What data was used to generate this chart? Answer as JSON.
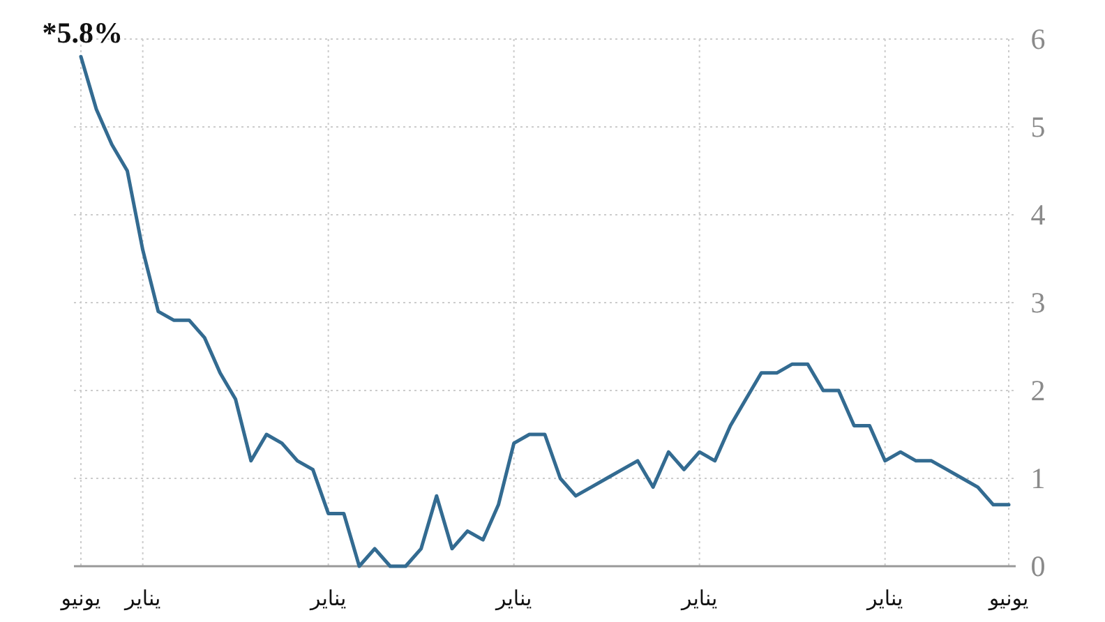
{
  "chart_data": {
    "type": "line",
    "categories": [
      "يونيو",
      null,
      null,
      null,
      "يناير",
      null,
      null,
      null,
      null,
      null,
      null,
      null,
      null,
      null,
      null,
      null,
      "يناير",
      null,
      null,
      null,
      null,
      null,
      null,
      null,
      null,
      null,
      null,
      null,
      "يناير",
      null,
      null,
      null,
      null,
      null,
      null,
      null,
      null,
      null,
      null,
      null,
      "يناير",
      null,
      null,
      null,
      null,
      null,
      null,
      null,
      null,
      null,
      null,
      null,
      "يناير",
      null,
      null,
      null,
      null,
      null,
      null,
      null,
      "يونيو"
    ],
    "values": [
      5.8,
      5.2,
      4.8,
      4.5,
      3.6,
      2.9,
      2.8,
      2.8,
      2.6,
      2.2,
      1.9,
      1.2,
      1.5,
      1.4,
      1.2,
      1.1,
      0.6,
      0.6,
      0,
      0.2,
      0,
      0,
      0.2,
      0.8,
      0.2,
      0.4,
      0.3,
      0.7,
      1.4,
      1.5,
      1.5,
      1.0,
      0.8,
      0.9,
      1.0,
      1.1,
      1.2,
      0.9,
      1.3,
      1.1,
      1.3,
      1.2,
      1.6,
      1.9,
      2.2,
      2.2,
      2.3,
      2.3,
      2.0,
      2.0,
      1.6,
      1.6,
      1.2,
      1.3,
      1.2,
      1.2,
      1.1,
      1.0,
      0.9,
      0.7,
      0.7
    ],
    "color": "#336b91",
    "ylim": [
      0,
      6
    ],
    "yticks": [
      0,
      1,
      2,
      3,
      4,
      5,
      6
    ],
    "grid": true,
    "annotations": [
      {
        "text": "*5.8%",
        "x": "يونيو",
        "y": 5.8
      }
    ]
  }
}
